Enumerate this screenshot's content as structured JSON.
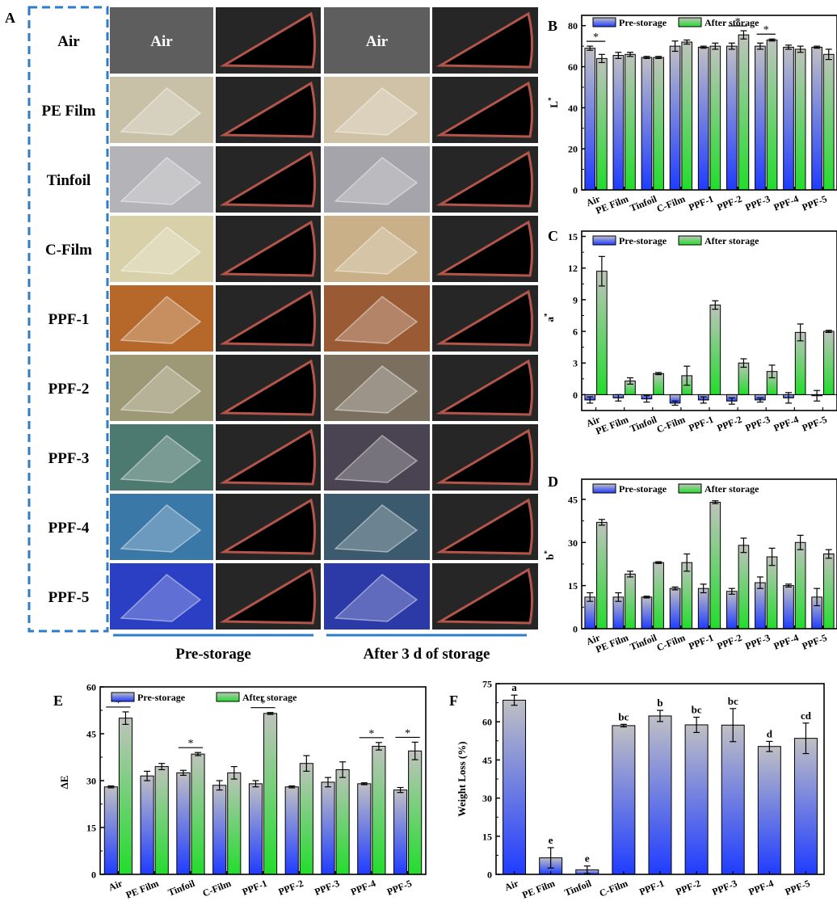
{
  "panel_letters": {
    "A": "A",
    "B": "B",
    "C": "C",
    "D": "D",
    "E": "E",
    "F": "F"
  },
  "panel_a": {
    "row_labels": [
      "Air",
      "PE Film",
      "Tinfoil",
      "C-Film",
      "PPF-1",
      "PPF-2",
      "PPF-3",
      "PPF-4",
      "PPF-5"
    ],
    "cell_text_air": "Air",
    "group_labels": [
      "Pre-storage",
      "After 3 d of storage"
    ],
    "photo_tints": {
      "packaged_pre": [
        "#5e5e5e",
        "#c9c0a8",
        "#b4b4b8",
        "#d8d0a8",
        "#b5682a",
        "#9d9876",
        "#4d7a70",
        "#3a78a8",
        "#2a3fc4"
      ],
      "packaged_after": [
        "#5e5e5e",
        "#cfc2a6",
        "#a4a4aa",
        "#c9b088",
        "#9a5b34",
        "#7b7060",
        "#4a4452",
        "#3b5a6e",
        "#2c3aa8"
      ],
      "fruit_pre": "#f1ead0",
      "fruit_after": "#efe3c4"
    }
  },
  "legend": {
    "pre": "Pre-storage",
    "after": "After storage"
  },
  "colors": {
    "pre_top": "#c0c0c4",
    "pre_bottom": "#1f3cff",
    "after_top": "#bfc3bd",
    "after_bottom": "#22dd2c"
  },
  "chart_data": [
    {
      "panel": "B",
      "type": "bar",
      "ylabel": "L*",
      "ylim": [
        0,
        85
      ],
      "yticks": [
        0,
        20,
        40,
        60,
        80
      ],
      "categories": [
        "Air",
        "PE Film",
        "Tinfoil",
        "C-Film",
        "PPF-1",
        "PPF-2",
        "PPF-3",
        "PPF-4",
        "PPF-5"
      ],
      "series": [
        {
          "name": "Pre-storage",
          "values": [
            69,
            65.5,
            64.5,
            70,
            69.5,
            70,
            70,
            69.5,
            69.5
          ],
          "errors": [
            1,
            1.5,
            0.5,
            2.5,
            0.5,
            1.5,
            1.5,
            1,
            0.5
          ]
        },
        {
          "name": "After storage",
          "values": [
            64,
            66,
            64.5,
            72,
            70,
            75.5,
            73,
            68.5,
            66
          ],
          "errors": [
            2,
            1,
            0.5,
            1,
            1.5,
            2,
            0.5,
            1.5,
            2.5
          ]
        }
      ],
      "significance": [
        "Air",
        "PPF-2",
        "PPF-3"
      ]
    },
    {
      "panel": "C",
      "type": "bar",
      "ylabel": "a*",
      "ylim": [
        -1.5,
        15.5
      ],
      "yticks": [
        0,
        3,
        6,
        9,
        12,
        15
      ],
      "categories": [
        "Air",
        "PE Film",
        "Tinfoil",
        "C-Film",
        "PPF-1",
        "PPF-2",
        "PPF-3",
        "PPF-4",
        "PPF-5"
      ],
      "series": [
        {
          "name": "Pre-storage",
          "values": [
            -0.5,
            -0.3,
            -0.4,
            -0.8,
            -0.5,
            -0.6,
            -0.5,
            -0.3,
            -0.1
          ],
          "errors": [
            0.3,
            0.3,
            0.3,
            0.2,
            0.3,
            0.3,
            0.2,
            0.5,
            0.5
          ]
        },
        {
          "name": "After storage",
          "values": [
            11.7,
            1.3,
            2.0,
            1.8,
            8.5,
            3.0,
            2.2,
            5.9,
            6.0
          ],
          "errors": [
            1.4,
            0.3,
            0.1,
            0.9,
            0.4,
            0.4,
            0.6,
            0.8,
            0.1
          ]
        }
      ]
    },
    {
      "panel": "D",
      "type": "bar",
      "ylabel": "b*",
      "ylim": [
        0,
        52
      ],
      "yticks": [
        0,
        15,
        30,
        45
      ],
      "categories": [
        "Air",
        "PE Film",
        "Tinfoil",
        "C-Film",
        "PPF-1",
        "PPF-2",
        "PPF-3",
        "PPF-4",
        "PPF-5"
      ],
      "series": [
        {
          "name": "Pre-storage",
          "values": [
            11,
            11,
            11,
            14,
            14,
            13,
            16,
            15,
            11
          ],
          "errors": [
            1.5,
            1.5,
            0.3,
            0.5,
            1.5,
            1,
            2,
            0.5,
            3
          ]
        },
        {
          "name": "After storage",
          "values": [
            37,
            19,
            23,
            23,
            44,
            29,
            25,
            30,
            26
          ],
          "errors": [
            1,
            1,
            0.3,
            3,
            0.5,
            2.5,
            3,
            2.5,
            1.5
          ]
        }
      ]
    },
    {
      "panel": "E",
      "type": "bar",
      "ylabel": "ΔE",
      "ylim": [
        0,
        60
      ],
      "yticks": [
        0,
        15,
        30,
        45,
        60
      ],
      "categories": [
        "Air",
        "PE Film",
        "Tinfoil",
        "C-Film",
        "PPF-1",
        "PPF-2",
        "PPF-3",
        "PPF-4",
        "PPF-5"
      ],
      "series": [
        {
          "name": "Pre-storage",
          "values": [
            28,
            31.5,
            32.5,
            28.5,
            29,
            28,
            29.5,
            29,
            27
          ],
          "errors": [
            0.3,
            1.5,
            0.8,
            1.5,
            1,
            0.3,
            1.5,
            0.3,
            0.8
          ]
        },
        {
          "name": "After storage",
          "values": [
            50,
            34.5,
            38.5,
            32.5,
            51.5,
            35.5,
            33.5,
            41,
            39.5
          ],
          "errors": [
            2,
            1,
            0.5,
            2,
            0.3,
            2.5,
            2.5,
            1.2,
            2.8
          ]
        }
      ],
      "significance": [
        "Air",
        "Tinfoil",
        "PPF-1",
        "PPF-4",
        "PPF-5"
      ]
    },
    {
      "panel": "F",
      "type": "bar",
      "ylabel": "Weight Loss (%)",
      "ylim": [
        0,
        75
      ],
      "yticks": [
        0,
        15,
        30,
        45,
        60,
        75
      ],
      "categories": [
        "Air",
        "PE Film",
        "Tinfoil",
        "C-Film",
        "PPF-1",
        "PPF-2",
        "PPF-3",
        "PPF-4",
        "PPF-5"
      ],
      "values": [
        68.5,
        6.5,
        1.8,
        58.5,
        62.3,
        58.8,
        58.7,
        50.3,
        53.5
      ],
      "errors": [
        2,
        4,
        1.5,
        0.5,
        2.2,
        3,
        6.5,
        2,
        6
      ],
      "letters": [
        "a",
        "e",
        "e",
        "bc",
        "b",
        "bc",
        "bc",
        "d",
        "cd"
      ]
    }
  ]
}
